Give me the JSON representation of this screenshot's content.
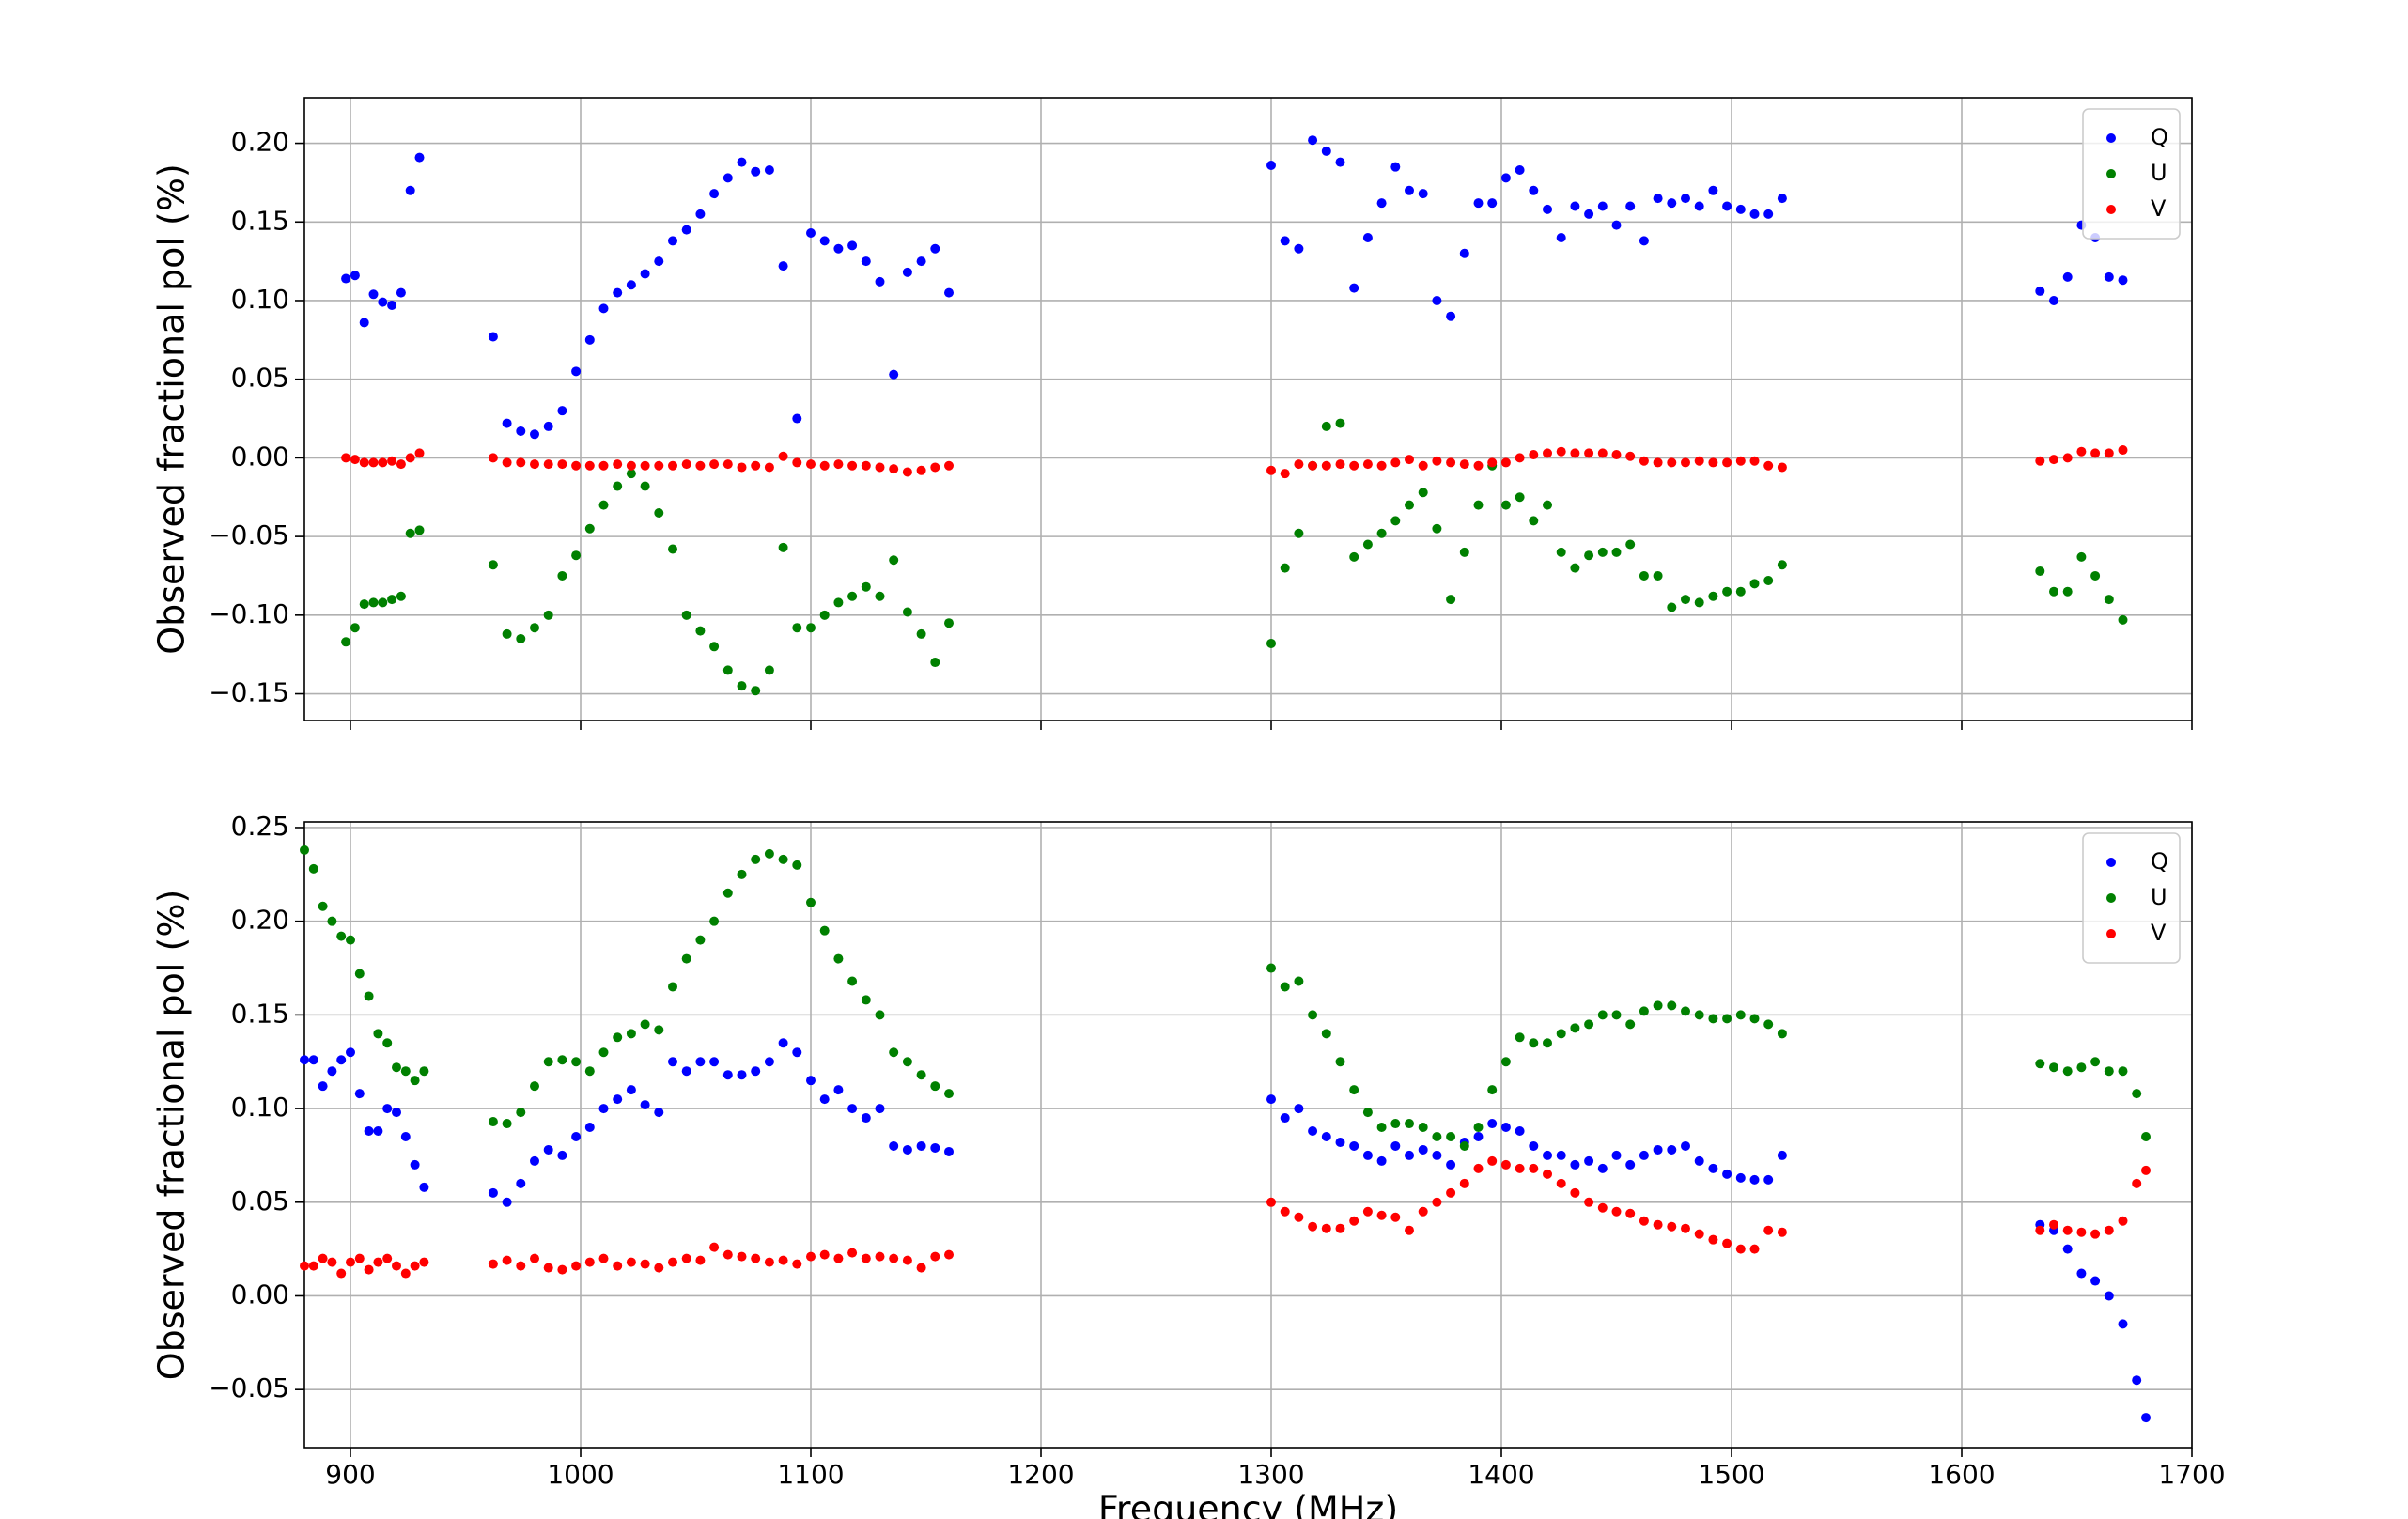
{
  "chart_data": [
    {
      "type": "scatter",
      "ylabel": "Observed fractional pol (%)",
      "xlim": [
        880,
        1700
      ],
      "ylim": [
        -0.167,
        0.229
      ],
      "xticks": [
        900,
        1000,
        1100,
        1200,
        1300,
        1400,
        1500,
        1600,
        1700
      ],
      "xtick_labels": false,
      "yticks": [
        {
          "value": -0.15,
          "label": "−0.15"
        },
        {
          "value": -0.1,
          "label": "−0.10"
        },
        {
          "value": -0.05,
          "label": "−0.05"
        },
        {
          "value": 0,
          "label": "0.00"
        },
        {
          "value": 0.05,
          "label": "0.05"
        },
        {
          "value": 0.1,
          "label": "0.10"
        },
        {
          "value": 0.15,
          "label": "0.15"
        },
        {
          "value": 0.2,
          "label": "0.20"
        }
      ],
      "grid": true,
      "legend": "upper right",
      "x": [
        898,
        902,
        906,
        910,
        914,
        918,
        922,
        926,
        930,
        962,
        968,
        974,
        980,
        986,
        992,
        998,
        1004,
        1010,
        1016,
        1022,
        1028,
        1034,
        1040,
        1046,
        1052,
        1058,
        1064,
        1070,
        1076,
        1082,
        1088,
        1094,
        1100,
        1106,
        1112,
        1118,
        1124,
        1130,
        1136,
        1142,
        1148,
        1154,
        1160,
        1300,
        1306,
        1312,
        1318,
        1324,
        1330,
        1336,
        1342,
        1348,
        1354,
        1360,
        1366,
        1372,
        1378,
        1384,
        1390,
        1396,
        1402,
        1408,
        1414,
        1420,
        1426,
        1432,
        1438,
        1444,
        1450,
        1456,
        1462,
        1468,
        1474,
        1480,
        1486,
        1492,
        1498,
        1504,
        1510,
        1516,
        1522,
        1634,
        1640,
        1646,
        1652,
        1658,
        1664,
        1670
      ],
      "series": [
        {
          "name": "Q",
          "color": "#0000ff",
          "values": [
            0.114,
            0.116,
            0.086,
            0.104,
            0.099,
            0.097,
            0.105,
            0.17,
            0.191,
            0.077,
            0.022,
            0.017,
            0.015,
            0.02,
            0.03,
            0.055,
            0.075,
            0.095,
            0.105,
            0.11,
            0.117,
            0.125,
            0.138,
            0.145,
            0.155,
            0.168,
            0.178,
            0.188,
            0.182,
            0.183,
            0.122,
            0.025,
            0.143,
            0.138,
            0.133,
            0.135,
            0.125,
            0.112,
            0.053,
            0.118,
            0.125,
            0.133,
            0.105,
            0.186,
            0.138,
            0.133,
            0.202,
            0.195,
            0.188,
            0.108,
            0.14,
            0.162,
            0.185,
            0.17,
            0.168,
            0.1,
            0.09,
            0.13,
            0.162,
            0.162,
            0.178,
            0.183,
            0.17,
            0.158,
            0.14,
            0.16,
            0.155,
            0.16,
            0.148,
            0.16,
            0.138,
            0.165,
            0.162,
            0.165,
            0.16,
            0.17,
            0.16,
            0.158,
            0.155,
            0.155,
            0.165,
            0.106,
            0.1,
            0.115,
            0.148,
            0.14,
            0.115,
            0.113
          ]
        },
        {
          "name": "U",
          "color": "#008000",
          "values": [
            -0.117,
            -0.108,
            -0.093,
            -0.092,
            -0.092,
            -0.09,
            -0.088,
            -0.048,
            -0.046,
            -0.068,
            -0.112,
            -0.115,
            -0.108,
            -0.1,
            -0.075,
            -0.062,
            -0.045,
            -0.03,
            -0.018,
            -0.01,
            -0.018,
            -0.035,
            -0.058,
            -0.1,
            -0.11,
            -0.12,
            -0.135,
            -0.145,
            -0.148,
            -0.135,
            -0.057,
            -0.108,
            -0.108,
            -0.1,
            -0.092,
            -0.088,
            -0.082,
            -0.088,
            -0.065,
            -0.098,
            -0.112,
            -0.13,
            -0.105,
            -0.118,
            -0.07,
            -0.048,
            -0.005,
            0.02,
            0.022,
            -0.063,
            -0.055,
            -0.048,
            -0.04,
            -0.03,
            -0.022,
            -0.045,
            -0.09,
            -0.06,
            -0.03,
            -0.005,
            -0.03,
            -0.025,
            -0.04,
            -0.03,
            -0.06,
            -0.07,
            -0.062,
            -0.06,
            -0.06,
            -0.055,
            -0.075,
            -0.075,
            -0.095,
            -0.09,
            -0.092,
            -0.088,
            -0.085,
            -0.085,
            -0.08,
            -0.078,
            -0.068,
            -0.072,
            -0.085,
            -0.085,
            -0.063,
            -0.075,
            -0.09,
            -0.103
          ]
        },
        {
          "name": "V",
          "color": "#ff0000",
          "values": [
            0.0,
            -0.001,
            -0.003,
            -0.003,
            -0.003,
            -0.002,
            -0.004,
            0.0,
            0.003,
            0.0,
            -0.003,
            -0.003,
            -0.004,
            -0.004,
            -0.004,
            -0.005,
            -0.005,
            -0.005,
            -0.004,
            -0.005,
            -0.005,
            -0.005,
            -0.005,
            -0.004,
            -0.005,
            -0.004,
            -0.004,
            -0.006,
            -0.005,
            -0.006,
            0.001,
            -0.003,
            -0.004,
            -0.005,
            -0.004,
            -0.005,
            -0.005,
            -0.006,
            -0.007,
            -0.009,
            -0.008,
            -0.006,
            -0.005,
            -0.008,
            -0.01,
            -0.004,
            -0.005,
            -0.005,
            -0.004,
            -0.005,
            -0.004,
            -0.005,
            -0.003,
            -0.001,
            -0.005,
            -0.002,
            -0.003,
            -0.004,
            -0.005,
            -0.003,
            -0.003,
            0.0,
            0.002,
            0.003,
            0.004,
            0.003,
            0.003,
            0.003,
            0.002,
            0.001,
            -0.002,
            -0.003,
            -0.003,
            -0.003,
            -0.002,
            -0.003,
            -0.003,
            -0.002,
            -0.002,
            -0.005,
            -0.006,
            -0.002,
            -0.001,
            0.0,
            0.004,
            0.003,
            0.003,
            0.005
          ]
        }
      ]
    },
    {
      "type": "scatter",
      "ylabel": "Observed fractional pol (%)",
      "xlabel": "Frequency (MHz)",
      "xlim": [
        880,
        1700
      ],
      "ylim": [
        -0.081,
        0.253
      ],
      "xticks": [
        900,
        1000,
        1100,
        1200,
        1300,
        1400,
        1500,
        1600,
        1700
      ],
      "yticks": [
        {
          "value": -0.05,
          "label": "−0.05"
        },
        {
          "value": 0,
          "label": "0.00"
        },
        {
          "value": 0.05,
          "label": "0.05"
        },
        {
          "value": 0.1,
          "label": "0.10"
        },
        {
          "value": 0.15,
          "label": "0.15"
        },
        {
          "value": 0.2,
          "label": "0.20"
        },
        {
          "value": 0.25,
          "label": "0.25"
        }
      ],
      "grid": true,
      "legend": "upper right",
      "x": [
        880,
        884,
        888,
        892,
        896,
        900,
        904,
        908,
        912,
        916,
        920,
        924,
        928,
        932,
        962,
        968,
        974,
        980,
        986,
        992,
        998,
        1004,
        1010,
        1016,
        1022,
        1028,
        1034,
        1040,
        1046,
        1052,
        1058,
        1064,
        1070,
        1076,
        1082,
        1088,
        1094,
        1100,
        1106,
        1112,
        1118,
        1124,
        1130,
        1136,
        1142,
        1148,
        1154,
        1160,
        1300,
        1306,
        1312,
        1318,
        1324,
        1330,
        1336,
        1342,
        1348,
        1354,
        1360,
        1366,
        1372,
        1378,
        1384,
        1390,
        1396,
        1402,
        1408,
        1414,
        1420,
        1426,
        1432,
        1438,
        1444,
        1450,
        1456,
        1462,
        1468,
        1474,
        1480,
        1486,
        1492,
        1498,
        1504,
        1510,
        1516,
        1522,
        1634,
        1640,
        1646,
        1652,
        1658,
        1664,
        1670,
        1676,
        1680
      ],
      "series": [
        {
          "name": "Q",
          "color": "#0000ff",
          "values": [
            0.126,
            0.126,
            0.112,
            0.12,
            0.126,
            0.13,
            0.108,
            0.088,
            0.088,
            0.1,
            0.098,
            0.085,
            0.07,
            0.058,
            0.055,
            0.05,
            0.06,
            0.072,
            0.078,
            0.075,
            0.085,
            0.09,
            0.1,
            0.105,
            0.11,
            0.102,
            0.098,
            0.125,
            0.12,
            0.125,
            0.125,
            0.118,
            0.118,
            0.12,
            0.125,
            0.135,
            0.13,
            0.115,
            0.105,
            0.11,
            0.1,
            0.095,
            0.1,
            0.08,
            0.078,
            0.08,
            0.079,
            0.077,
            0.105,
            0.095,
            0.1,
            0.088,
            0.085,
            0.082,
            0.08,
            0.075,
            0.072,
            0.08,
            0.075,
            0.078,
            0.075,
            0.07,
            0.082,
            0.085,
            0.092,
            0.09,
            0.088,
            0.08,
            0.075,
            0.075,
            0.07,
            0.072,
            0.068,
            0.075,
            0.07,
            0.075,
            0.078,
            0.078,
            0.08,
            0.072,
            0.068,
            0.065,
            0.063,
            0.062,
            0.062,
            0.075,
            0.038,
            0.035,
            0.025,
            0.012,
            0.008,
            0.0,
            -0.015,
            -0.045,
            -0.065
          ]
        },
        {
          "name": "U",
          "color": "#008000",
          "values": [
            0.238,
            0.228,
            0.208,
            0.2,
            0.192,
            0.19,
            0.172,
            0.16,
            0.14,
            0.135,
            0.122,
            0.12,
            0.115,
            0.12,
            0.093,
            0.092,
            0.098,
            0.112,
            0.125,
            0.126,
            0.125,
            0.12,
            0.13,
            0.138,
            0.14,
            0.145,
            0.142,
            0.165,
            0.18,
            0.19,
            0.2,
            0.215,
            0.225,
            0.233,
            0.236,
            0.233,
            0.23,
            0.21,
            0.195,
            0.18,
            0.168,
            0.158,
            0.15,
            0.13,
            0.125,
            0.118,
            0.112,
            0.108,
            0.175,
            0.165,
            0.168,
            0.15,
            0.14,
            0.125,
            0.11,
            0.098,
            0.09,
            0.092,
            0.092,
            0.09,
            0.085,
            0.085,
            0.08,
            0.09,
            0.11,
            0.125,
            0.138,
            0.135,
            0.135,
            0.14,
            0.143,
            0.145,
            0.15,
            0.15,
            0.145,
            0.152,
            0.155,
            0.155,
            0.152,
            0.15,
            0.148,
            0.148,
            0.15,
            0.148,
            0.145,
            0.14,
            0.124,
            0.122,
            0.12,
            0.122,
            0.125,
            0.12,
            0.12,
            0.108,
            0.085
          ]
        },
        {
          "name": "V",
          "color": "#ff0000",
          "values": [
            0.016,
            0.016,
            0.02,
            0.018,
            0.012,
            0.018,
            0.02,
            0.014,
            0.018,
            0.02,
            0.016,
            0.012,
            0.016,
            0.018,
            0.017,
            0.019,
            0.016,
            0.02,
            0.015,
            0.014,
            0.016,
            0.018,
            0.02,
            0.016,
            0.018,
            0.017,
            0.015,
            0.018,
            0.02,
            0.019,
            0.026,
            0.022,
            0.021,
            0.02,
            0.018,
            0.019,
            0.017,
            0.021,
            0.022,
            0.02,
            0.023,
            0.02,
            0.021,
            0.02,
            0.019,
            0.015,
            0.021,
            0.022,
            0.05,
            0.045,
            0.042,
            0.037,
            0.036,
            0.036,
            0.04,
            0.045,
            0.043,
            0.042,
            0.035,
            0.045,
            0.05,
            0.055,
            0.06,
            0.068,
            0.072,
            0.07,
            0.068,
            0.068,
            0.065,
            0.06,
            0.055,
            0.05,
            0.047,
            0.045,
            0.044,
            0.04,
            0.038,
            0.037,
            0.036,
            0.033,
            0.03,
            0.028,
            0.025,
            0.025,
            0.035,
            0.034,
            0.035,
            0.038,
            0.035,
            0.034,
            0.033,
            0.035,
            0.04,
            0.06,
            0.067
          ]
        }
      ]
    }
  ]
}
